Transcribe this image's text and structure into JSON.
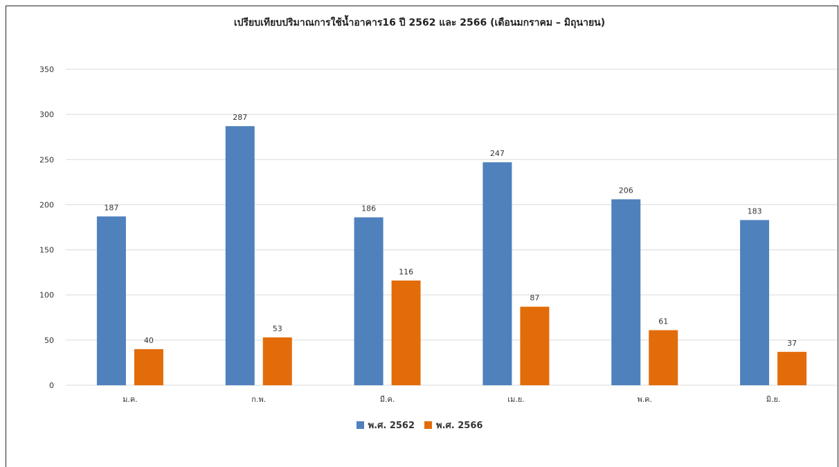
{
  "colors": {
    "series_2562": "#4f81bd",
    "series_2566": "#e36c0a",
    "grid": "#d9d9d9",
    "text": "#333333"
  },
  "chart_data": {
    "type": "bar",
    "title": "เปรียบเทียบปริมาณการใช้น้ำอาคาร16 ปี 2562 และ 2566 (เดือนมกราคม – มิถุนายน)",
    "categories": [
      "ม.ค.",
      "ก.พ.",
      "มี.ค.",
      "เม.ย.",
      "พ.ค.",
      "มิ.ย."
    ],
    "series": [
      {
        "name": "พ.ศ. 2562",
        "values": [
          187,
          287,
          186,
          247,
          206,
          183
        ]
      },
      {
        "name": "พ.ศ. 2566",
        "values": [
          40,
          53,
          116,
          87,
          61,
          37
        ]
      }
    ],
    "ylim": [
      0,
      350
    ],
    "yticks": [
      0,
      50,
      100,
      150,
      200,
      250,
      300,
      350
    ],
    "grid": true,
    "legend_position": "bottom"
  }
}
